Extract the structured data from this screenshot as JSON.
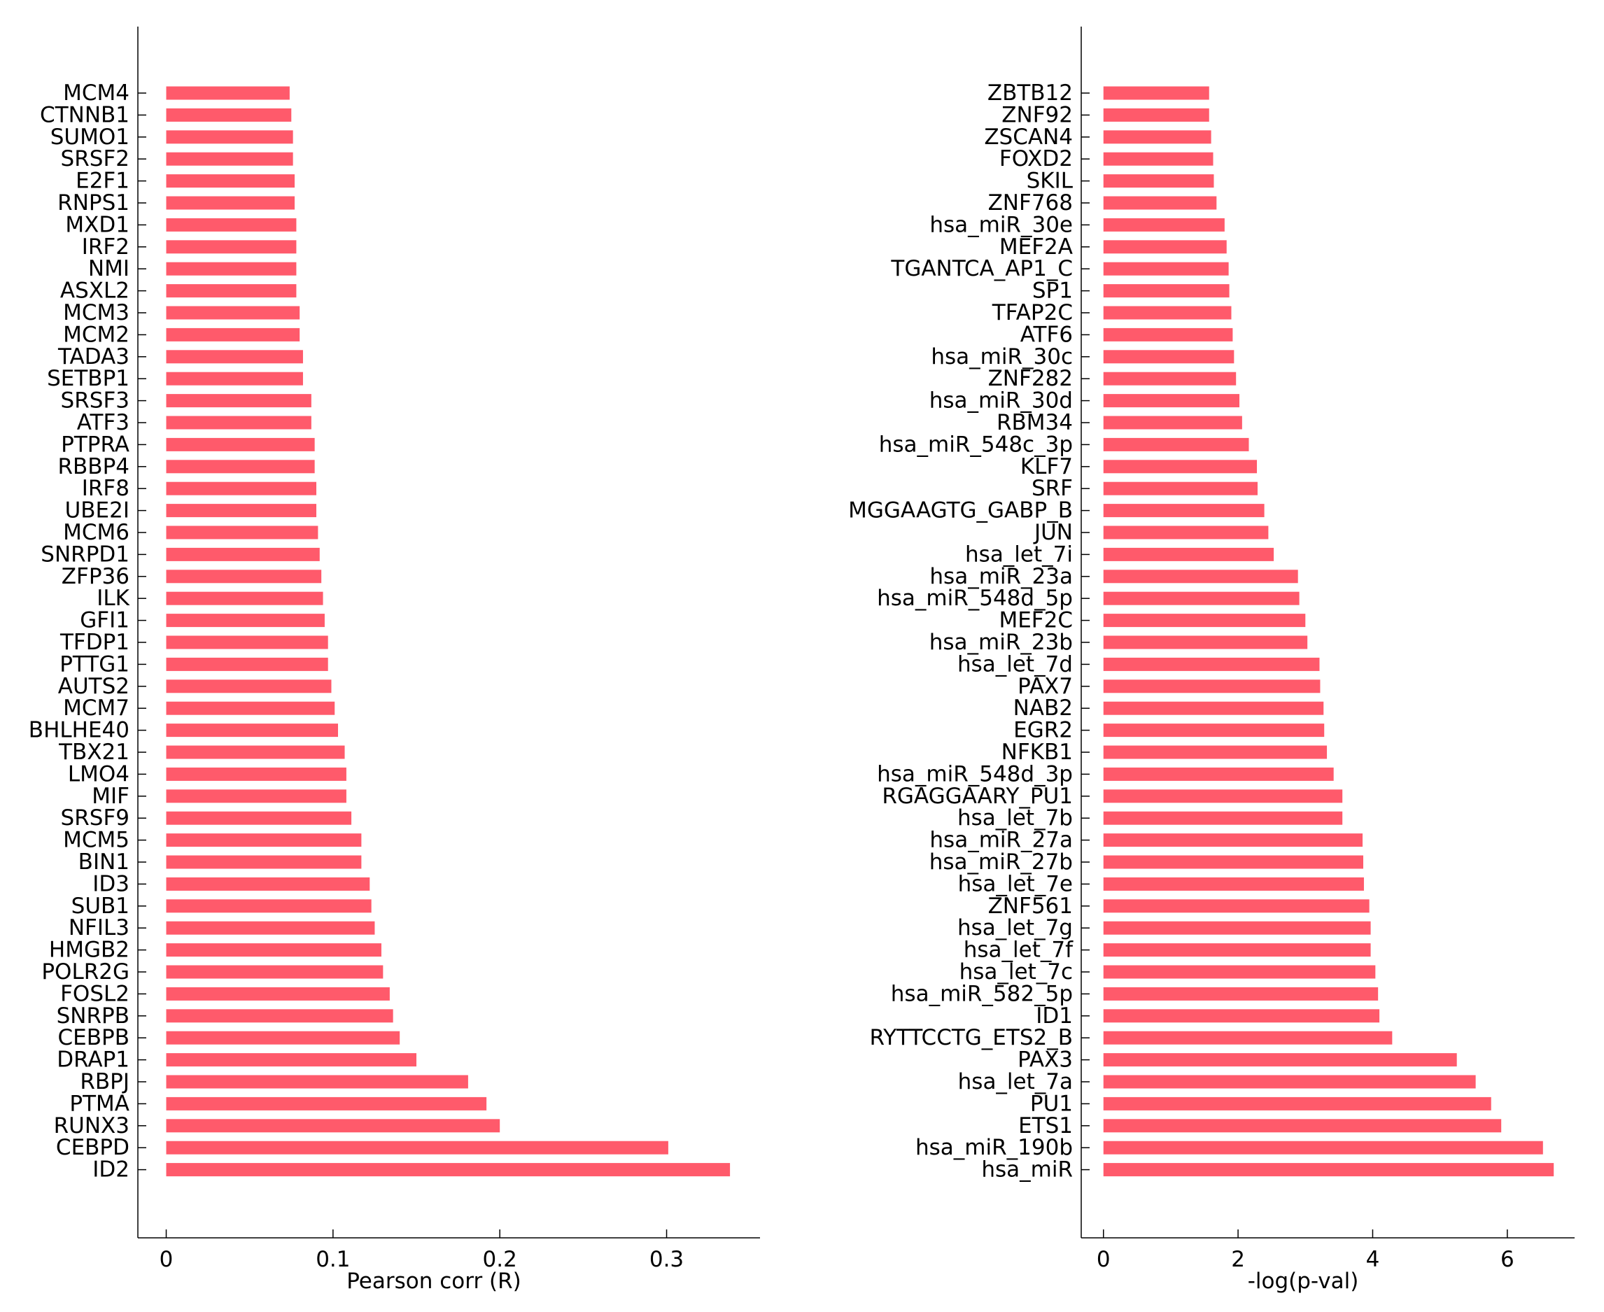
{
  "chart_data": [
    {
      "type": "bar",
      "orientation": "horizontal",
      "categories": [
        "MCM4",
        "CTNNB1",
        "SUMO1",
        "SRSF2",
        "E2F1",
        "RNPS1",
        "MXD1",
        "IRF2",
        "NMI",
        "ASXL2",
        "MCM3",
        "MCM2",
        "TADA3",
        "SETBP1",
        "SRSF3",
        "ATF3",
        "PTPRA",
        "RBBP4",
        "IRF8",
        "UBE2I",
        "MCM6",
        "SNRPD1",
        "ZFP36",
        "ILK",
        "GFI1",
        "TFDP1",
        "PTTG1",
        "AUTS2",
        "MCM7",
        "BHLHE40",
        "TBX21",
        "LMO4",
        "MIF",
        "SRSF9",
        "MCM5",
        "BIN1",
        "ID3",
        "SUB1",
        "NFIL3",
        "HMGB2",
        "POLR2G",
        "FOSL2",
        "SNRPB",
        "CEBPB",
        "DRAP1",
        "RBPJ",
        "PTMA",
        "RUNX3",
        "CEBPD",
        "ID2"
      ],
      "values": [
        0.074,
        0.075,
        0.076,
        0.076,
        0.077,
        0.077,
        0.078,
        0.078,
        0.078,
        0.078,
        0.08,
        0.08,
        0.082,
        0.082,
        0.087,
        0.087,
        0.089,
        0.089,
        0.09,
        0.09,
        0.091,
        0.092,
        0.093,
        0.094,
        0.095,
        0.097,
        0.097,
        0.099,
        0.101,
        0.103,
        0.107,
        0.108,
        0.108,
        0.111,
        0.117,
        0.117,
        0.122,
        0.123,
        0.125,
        0.129,
        0.13,
        0.134,
        0.136,
        0.14,
        0.15,
        0.181,
        0.192,
        0.2,
        0.301,
        0.338
      ],
      "xlabel": "Pearson corr (R)",
      "ylabel": "",
      "xlim": [
        -0.017,
        0.356
      ],
      "xticks": [
        0,
        0.1,
        0.2,
        0.3
      ],
      "xtick_labels": [
        "0",
        "0.1",
        "0.2",
        "0.3"
      ],
      "bar_color": "#FF5A6B",
      "grid": false,
      "legend": false
    },
    {
      "type": "bar",
      "orientation": "horizontal",
      "categories": [
        "ZBTB12",
        "ZNF92",
        "ZSCAN4",
        "FOXD2",
        "SKIL",
        "ZNF768",
        "hsa_miR_30e",
        "MEF2A",
        "TGANTCA_AP1_C",
        "SP1",
        "TFAP2C",
        "ATF6",
        "hsa_miR_30c",
        "ZNF282",
        "hsa_miR_30d",
        "RBM34",
        "hsa_miR_548c_3p",
        "KLF7",
        "SRF",
        "MGGAAGTG_GABP_B",
        "JUN",
        "hsa_let_7i",
        "hsa_miR_23a",
        "hsa_miR_548d_5p",
        "MEF2C",
        "hsa_miR_23b",
        "hsa_let_7d",
        "PAX7",
        "NAB2",
        "EGR2",
        "NFKB1",
        "hsa_miR_548d_3p",
        "RGAGGAARY_PU1",
        "hsa_let_7b",
        "hsa_miR_27a",
        "hsa_miR_27b",
        "hsa_let_7e",
        "ZNF561",
        "hsa_let_7g",
        "hsa_let_7f",
        "hsa_let_7c",
        "hsa_miR_582_5p",
        "ID1",
        "RYTTCCTG_ETS2_B",
        "PAX3",
        "hsa_let_7a",
        "PU1",
        "ETS1",
        "hsa_miR_190b",
        "hsa_miR"
      ],
      "values": [
        1.57,
        1.57,
        1.6,
        1.63,
        1.64,
        1.68,
        1.8,
        1.83,
        1.86,
        1.87,
        1.9,
        1.92,
        1.94,
        1.97,
        2.02,
        2.06,
        2.16,
        2.28,
        2.29,
        2.39,
        2.45,
        2.53,
        2.89,
        2.91,
        3.0,
        3.03,
        3.21,
        3.22,
        3.27,
        3.28,
        3.32,
        3.42,
        3.55,
        3.55,
        3.85,
        3.86,
        3.87,
        3.95,
        3.97,
        3.97,
        4.04,
        4.08,
        4.1,
        4.29,
        5.25,
        5.53,
        5.76,
        5.91,
        6.53,
        6.69
      ],
      "xlabel": "-log(p-val)",
      "ylabel": "",
      "xlim": [
        -0.33,
        7.0
      ],
      "xticks": [
        0,
        2,
        4,
        6
      ],
      "xtick_labels": [
        "0",
        "2",
        "4",
        "6"
      ],
      "bar_color": "#FF5A6B",
      "grid": false,
      "legend": false
    }
  ]
}
